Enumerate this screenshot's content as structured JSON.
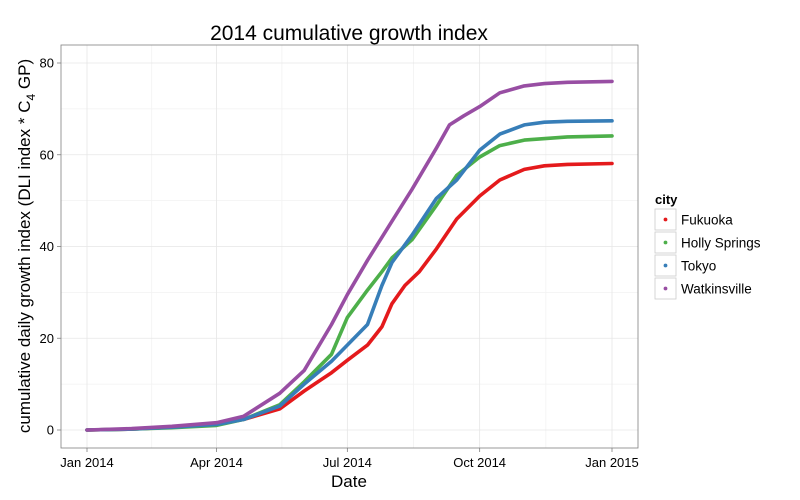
{
  "chart_data": {
    "type": "line",
    "title": "2014 cumulative growth index",
    "xlabel": "Date",
    "ylabel_parts": [
      "cumulative daily growth index (DLI index * C",
      "4",
      " GP)"
    ],
    "x_scale": "date",
    "xlim": [
      "2014-01-01",
      "2015-01-01"
    ],
    "ylim": [
      0,
      80
    ],
    "x_ticks": [
      {
        "date": "2014-01-01",
        "label": "Jan 2014"
      },
      {
        "date": "2014-04-01",
        "label": "Apr 2014"
      },
      {
        "date": "2014-07-01",
        "label": "Jul 2014"
      },
      {
        "date": "2014-10-01",
        "label": "Oct 2014"
      },
      {
        "date": "2015-01-01",
        "label": "Jan 2015"
      }
    ],
    "y_ticks": [
      0,
      20,
      40,
      60,
      80
    ],
    "grid": true,
    "legend": {
      "title": "city",
      "placement": "right"
    },
    "series": [
      {
        "name": "Fukuoka",
        "color": "#e41a1c",
        "points": [
          [
            "2014-01-01",
            0
          ],
          [
            "2014-02-01",
            0.2
          ],
          [
            "2014-03-01",
            0.6
          ],
          [
            "2014-04-01",
            1.3
          ],
          [
            "2014-04-20",
            2.3
          ],
          [
            "2014-05-15",
            4.6
          ],
          [
            "2014-06-01",
            8.5
          ],
          [
            "2014-06-20",
            12.5
          ],
          [
            "2014-07-01",
            15.2
          ],
          [
            "2014-07-15",
            18.5
          ],
          [
            "2014-07-25",
            22.5
          ],
          [
            "2014-08-01",
            27.5
          ],
          [
            "2014-08-10",
            31.5
          ],
          [
            "2014-08-20",
            34.5
          ],
          [
            "2014-09-01",
            39.5
          ],
          [
            "2014-09-15",
            46
          ],
          [
            "2014-10-01",
            51
          ],
          [
            "2014-10-15",
            54.5
          ],
          [
            "2014-11-01",
            56.8
          ],
          [
            "2014-11-15",
            57.6
          ],
          [
            "2014-12-01",
            57.9
          ],
          [
            "2015-01-01",
            58.1
          ]
        ]
      },
      {
        "name": "Holly Springs",
        "color": "#4daf4a",
        "points": [
          [
            "2014-01-01",
            0
          ],
          [
            "2014-02-01",
            0.2
          ],
          [
            "2014-03-01",
            0.5
          ],
          [
            "2014-04-01",
            1
          ],
          [
            "2014-04-20",
            2.3
          ],
          [
            "2014-05-15",
            5.5
          ],
          [
            "2014-06-01",
            10.5
          ],
          [
            "2014-06-20",
            16.5
          ],
          [
            "2014-07-01",
            24.5
          ],
          [
            "2014-07-15",
            30.5
          ],
          [
            "2014-07-25",
            34.5
          ],
          [
            "2014-08-01",
            37.5
          ],
          [
            "2014-08-15",
            41.5
          ],
          [
            "2014-09-01",
            49
          ],
          [
            "2014-09-15",
            55.5
          ],
          [
            "2014-10-01",
            59.5
          ],
          [
            "2014-10-15",
            62
          ],
          [
            "2014-11-01",
            63.2
          ],
          [
            "2014-12-01",
            63.9
          ],
          [
            "2015-01-01",
            64.1
          ]
        ]
      },
      {
        "name": "Tokyo",
        "color": "#377eb8",
        "points": [
          [
            "2014-01-01",
            0
          ],
          [
            "2014-02-01",
            0.2
          ],
          [
            "2014-03-01",
            0.6
          ],
          [
            "2014-04-01",
            1.2
          ],
          [
            "2014-04-20",
            2.3
          ],
          [
            "2014-05-15",
            5.2
          ],
          [
            "2014-06-01",
            10
          ],
          [
            "2014-06-20",
            15
          ],
          [
            "2014-07-01",
            18.5
          ],
          [
            "2014-07-15",
            23
          ],
          [
            "2014-07-25",
            31.5
          ],
          [
            "2014-08-01",
            36.5
          ],
          [
            "2014-08-15",
            42.5
          ],
          [
            "2014-09-01",
            50.5
          ],
          [
            "2014-09-15",
            54.5
          ],
          [
            "2014-10-01",
            61
          ],
          [
            "2014-10-15",
            64.5
          ],
          [
            "2014-11-01",
            66.5
          ],
          [
            "2014-11-15",
            67.1
          ],
          [
            "2014-12-01",
            67.3
          ],
          [
            "2015-01-01",
            67.4
          ]
        ]
      },
      {
        "name": "Watkinsville",
        "color": "#984ea3",
        "points": [
          [
            "2014-01-01",
            0
          ],
          [
            "2014-02-01",
            0.3
          ],
          [
            "2014-03-01",
            0.8
          ],
          [
            "2014-04-01",
            1.6
          ],
          [
            "2014-04-20",
            3
          ],
          [
            "2014-05-15",
            8
          ],
          [
            "2014-06-01",
            13
          ],
          [
            "2014-06-20",
            23
          ],
          [
            "2014-07-01",
            29.5
          ],
          [
            "2014-07-15",
            37
          ],
          [
            "2014-07-25",
            42
          ],
          [
            "2014-08-01",
            45.5
          ],
          [
            "2014-08-15",
            52.5
          ],
          [
            "2014-09-01",
            61.5
          ],
          [
            "2014-09-10",
            66.5
          ],
          [
            "2014-09-20",
            68.5
          ],
          [
            "2014-10-01",
            70.5
          ],
          [
            "2014-10-15",
            73.5
          ],
          [
            "2014-11-01",
            75
          ],
          [
            "2014-11-15",
            75.5
          ],
          [
            "2014-12-01",
            75.8
          ],
          [
            "2015-01-01",
            76
          ]
        ]
      }
    ]
  }
}
